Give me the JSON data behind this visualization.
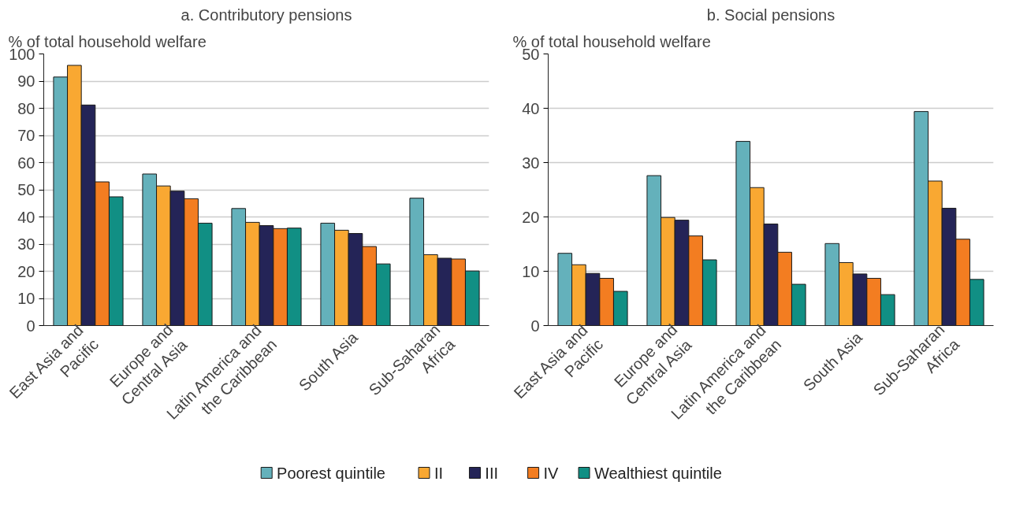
{
  "chart_data": [
    {
      "type": "bar",
      "title": "a. Contributory pensions",
      "ylabel": "% of total household welfare",
      "categories": [
        "East Asia and Pacific",
        "Europe and Central Asia",
        "Latin America and the Caribbean",
        "South Asia",
        "Sub-Saharan Africa"
      ],
      "series": [
        {
          "name": "Poorest quintile",
          "color": "#64b1bb",
          "values": [
            91.5,
            55.8,
            43.1,
            37.7,
            46.9
          ]
        },
        {
          "name": "II",
          "color": "#f9a832",
          "values": [
            95.8,
            51.4,
            38.0,
            35.1,
            26.1
          ]
        },
        {
          "name": "III",
          "color": "#242457",
          "values": [
            81.2,
            49.5,
            36.8,
            33.9,
            24.8
          ]
        },
        {
          "name": "IV",
          "color": "#f37d21",
          "values": [
            52.9,
            46.7,
            35.7,
            29.1,
            24.5
          ]
        },
        {
          "name": "Wealthiest quintile",
          "color": "#118f84",
          "values": [
            47.4,
            37.7,
            35.9,
            22.7,
            20.1
          ]
        }
      ],
      "ylim": [
        0,
        100
      ],
      "yticks": [
        0,
        10,
        20,
        30,
        40,
        50,
        60,
        70,
        80,
        90,
        100
      ],
      "grid": "y",
      "legend": "bottom"
    },
    {
      "type": "bar",
      "title": "b. Social pensions",
      "ylabel": "% of total household welfare",
      "categories": [
        "East Asia and Pacific",
        "Europe and Central Asia",
        "Latin America and the Caribbean",
        "South Asia",
        "Sub-Saharan Africa"
      ],
      "series": [
        {
          "color": "#64b1bb",
          "values": [
            13.3,
            27.6,
            33.9,
            15.1,
            39.4
          ]
        },
        {
          "color": "#f9a832",
          "values": [
            11.2,
            19.9,
            25.4,
            11.6,
            26.6
          ]
        },
        {
          "color": "#242457",
          "values": [
            9.6,
            19.4,
            18.7,
            9.5,
            21.6
          ]
        },
        {
          "color": "#f37d21",
          "values": [
            8.7,
            16.5,
            13.5,
            8.7,
            15.9
          ]
        },
        {
          "color": "#118f84",
          "values": [
            6.3,
            12.1,
            7.6,
            5.7,
            8.5
          ]
        }
      ],
      "ylim": [
        0,
        50
      ],
      "yticks": [
        0,
        10,
        20,
        30,
        40,
        50
      ],
      "grid": "y"
    }
  ]
}
